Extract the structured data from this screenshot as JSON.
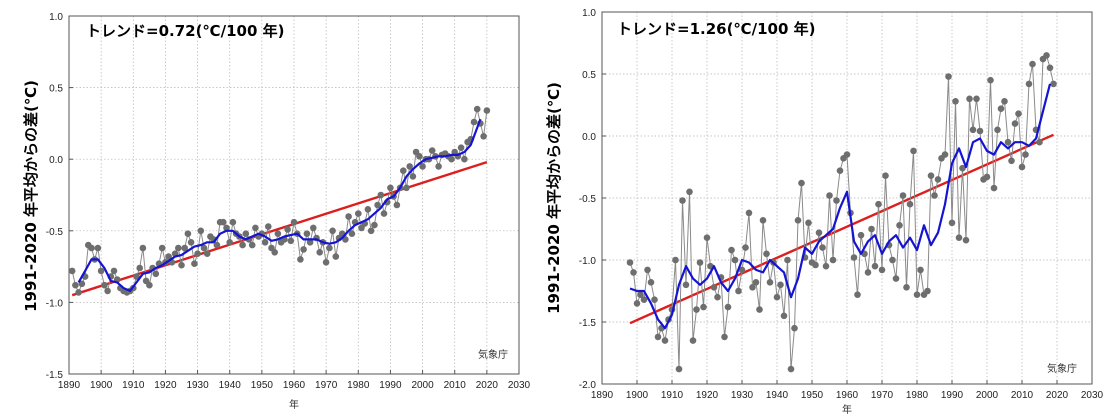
{
  "chart_data": [
    {
      "type": "line",
      "trend_label": "トレンド=0.72(℃/100 年)",
      "ylabel": "1991-2020 年平均からの差(℃)",
      "xlabel": "年",
      "credit": "気象庁",
      "xlim": [
        1890,
        2030
      ],
      "ylim": [
        -1.5,
        1.0
      ],
      "x_ticks": [
        "1890",
        "1900",
        "1910",
        "1920",
        "1930",
        "1940",
        "1950",
        "1960",
        "1970",
        "1980",
        "1990",
        "2000",
        "2010",
        "2020",
        "2030"
      ],
      "y_ticks": [
        "-1.5",
        "-1.0",
        "-0.5",
        "0.0",
        "0.5",
        "1.0"
      ],
      "colors": {
        "annual": "#6e6e6e",
        "smooth": "#1414d2",
        "trend": "#dc1e1e"
      },
      "series": [
        {
          "kind": "annual",
          "x": [
            1891,
            1892,
            1893,
            1894,
            1895,
            1896,
            1897,
            1898,
            1899,
            1900,
            1901,
            1902,
            1903,
            1904,
            1905,
            1906,
            1907,
            1908,
            1909,
            1910,
            1911,
            1912,
            1913,
            1914,
            1915,
            1916,
            1917,
            1918,
            1919,
            1920,
            1921,
            1922,
            1923,
            1924,
            1925,
            1926,
            1927,
            1928,
            1929,
            1930,
            1931,
            1932,
            1933,
            1934,
            1935,
            1936,
            1937,
            1938,
            1939,
            1940,
            1941,
            1942,
            1943,
            1944,
            1945,
            1946,
            1947,
            1948,
            1949,
            1950,
            1951,
            1952,
            1953,
            1954,
            1955,
            1956,
            1957,
            1958,
            1959,
            1960,
            1961,
            1962,
            1963,
            1964,
            1965,
            1966,
            1967,
            1968,
            1969,
            1970,
            1971,
            1972,
            1973,
            1974,
            1975,
            1976,
            1977,
            1978,
            1979,
            1980,
            1981,
            1982,
            1983,
            1984,
            1985,
            1986,
            1987,
            1988,
            1989,
            1990,
            1991,
            1992,
            1993,
            1994,
            1995,
            1996,
            1997,
            1998,
            1999,
            2000,
            2001,
            2002,
            2003,
            2004,
            2005,
            2006,
            2007,
            2008,
            2009,
            2010,
            2011,
            2012,
            2013,
            2014,
            2015,
            2016,
            2017,
            2018,
            2019,
            2020
          ],
          "values": [
            -0.78,
            -0.88,
            -0.93,
            -0.87,
            -0.82,
            -0.6,
            -0.62,
            -0.7,
            -0.62,
            -0.78,
            -0.88,
            -0.92,
            -0.82,
            -0.78,
            -0.84,
            -0.9,
            -0.92,
            -0.93,
            -0.92,
            -0.9,
            -0.82,
            -0.76,
            -0.62,
            -0.85,
            -0.88,
            -0.76,
            -0.8,
            -0.73,
            -0.62,
            -0.72,
            -0.68,
            -0.72,
            -0.66,
            -0.62,
            -0.74,
            -0.62,
            -0.52,
            -0.58,
            -0.73,
            -0.66,
            -0.5,
            -0.62,
            -0.66,
            -0.54,
            -0.56,
            -0.6,
            -0.44,
            -0.44,
            -0.48,
            -0.58,
            -0.44,
            -0.52,
            -0.54,
            -0.6,
            -0.52,
            -0.56,
            -0.6,
            -0.48,
            -0.54,
            -0.52,
            -0.58,
            -0.47,
            -0.62,
            -0.65,
            -0.52,
            -0.58,
            -0.56,
            -0.49,
            -0.57,
            -0.44,
            -0.52,
            -0.7,
            -0.63,
            -0.52,
            -0.58,
            -0.48,
            -0.55,
            -0.65,
            -0.58,
            -0.72,
            -0.62,
            -0.5,
            -0.68,
            -0.55,
            -0.52,
            -0.56,
            -0.4,
            -0.52,
            -0.44,
            -0.38,
            -0.48,
            -0.45,
            -0.35,
            -0.5,
            -0.46,
            -0.32,
            -0.25,
            -0.38,
            -0.3,
            -0.2,
            -0.26,
            -0.32,
            -0.2,
            -0.08,
            -0.2,
            -0.05,
            -0.12,
            0.05,
            0.02,
            -0.05,
            0.0,
            0.0,
            0.06,
            0.02,
            -0.05,
            0.03,
            0.04,
            0.02,
            0.0,
            0.05,
            0.02,
            0.08,
            0.0,
            0.12,
            0.14,
            0.26,
            0.35,
            0.25,
            0.16,
            0.34
          ]
        },
        {
          "kind": "smoothed",
          "x": [
            1893,
            1895,
            1897,
            1899,
            1901,
            1903,
            1905,
            1907,
            1909,
            1911,
            1913,
            1915,
            1917,
            1919,
            1921,
            1923,
            1925,
            1927,
            1929,
            1931,
            1933,
            1935,
            1937,
            1939,
            1941,
            1943,
            1945,
            1947,
            1949,
            1951,
            1953,
            1955,
            1957,
            1959,
            1961,
            1963,
            1965,
            1967,
            1969,
            1971,
            1973,
            1975,
            1977,
            1979,
            1981,
            1983,
            1985,
            1987,
            1989,
            1991,
            1993,
            1995,
            1997,
            1999,
            2001,
            2003,
            2005,
            2007,
            2009,
            2011,
            2013,
            2015,
            2017,
            2018
          ],
          "values": [
            -0.86,
            -0.78,
            -0.7,
            -0.7,
            -0.76,
            -0.85,
            -0.86,
            -0.9,
            -0.92,
            -0.86,
            -0.8,
            -0.79,
            -0.76,
            -0.74,
            -0.71,
            -0.68,
            -0.67,
            -0.64,
            -0.61,
            -0.6,
            -0.58,
            -0.58,
            -0.52,
            -0.5,
            -0.5,
            -0.54,
            -0.56,
            -0.54,
            -0.52,
            -0.54,
            -0.57,
            -0.56,
            -0.54,
            -0.53,
            -0.52,
            -0.56,
            -0.56,
            -0.56,
            -0.58,
            -0.59,
            -0.58,
            -0.55,
            -0.5,
            -0.46,
            -0.44,
            -0.42,
            -0.38,
            -0.34,
            -0.28,
            -0.26,
            -0.2,
            -0.12,
            -0.07,
            -0.03,
            0.0,
            0.01,
            0.02,
            0.02,
            0.03,
            0.03,
            0.05,
            0.1,
            0.22,
            0.28
          ]
        },
        {
          "kind": "trend",
          "x": [
            1891,
            2020
          ],
          "values": [
            -0.95,
            -0.02
          ]
        }
      ]
    },
    {
      "type": "line",
      "trend_label": "トレンド=1.26(℃/100 年)",
      "ylabel": "1991-2020 年平均からの差(℃)",
      "xlabel": "年",
      "credit": "気象庁",
      "xlim": [
        1890,
        2030
      ],
      "ylim": [
        -2.0,
        1.0
      ],
      "x_ticks": [
        "1890",
        "1900",
        "1910",
        "1920",
        "1930",
        "1940",
        "1950",
        "1960",
        "1970",
        "1980",
        "1990",
        "2000",
        "2010",
        "2020",
        "2030"
      ],
      "y_ticks": [
        "-2.0",
        "-1.5",
        "-1.0",
        "-0.5",
        "0.0",
        "0.5",
        "1.0"
      ],
      "colors": {
        "annual": "#6e6e6e",
        "smooth": "#1414d2",
        "trend": "#dc1e1e"
      },
      "series": [
        {
          "kind": "annual",
          "x": [
            1898,
            1899,
            1900,
            1901,
            1902,
            1903,
            1904,
            1905,
            1906,
            1907,
            1908,
            1909,
            1910,
            1911,
            1912,
            1913,
            1914,
            1915,
            1916,
            1917,
            1918,
            1919,
            1920,
            1921,
            1922,
            1923,
            1924,
            1925,
            1926,
            1927,
            1928,
            1929,
            1930,
            1931,
            1932,
            1933,
            1934,
            1935,
            1936,
            1937,
            1938,
            1939,
            1940,
            1941,
            1942,
            1943,
            1944,
            1945,
            1946,
            1947,
            1948,
            1949,
            1950,
            1951,
            1952,
            1953,
            1954,
            1955,
            1956,
            1957,
            1958,
            1959,
            1960,
            1961,
            1962,
            1963,
            1964,
            1965,
            1966,
            1967,
            1968,
            1969,
            1970,
            1971,
            1972,
            1973,
            1974,
            1975,
            1976,
            1977,
            1978,
            1979,
            1980,
            1981,
            1982,
            1983,
            1984,
            1985,
            1986,
            1987,
            1988,
            1989,
            1990,
            1991,
            1992,
            1993,
            1994,
            1995,
            1996,
            1997,
            1998,
            1999,
            2000,
            2001,
            2002,
            2003,
            2004,
            2005,
            2006,
            2007,
            2008,
            2009,
            2010,
            2011,
            2012,
            2013,
            2014,
            2015,
            2016,
            2017,
            2018,
            2019
          ],
          "values": [
            -1.02,
            -1.1,
            -1.35,
            -1.28,
            -1.32,
            -1.08,
            -1.18,
            -1.32,
            -1.62,
            -1.55,
            -1.65,
            -1.48,
            -1.4,
            -1.0,
            -1.88,
            -0.52,
            -1.2,
            -0.45,
            -1.65,
            -1.4,
            -1.02,
            -1.38,
            -0.82,
            -1.05,
            -1.22,
            -1.3,
            -1.14,
            -1.62,
            -1.38,
            -0.92,
            -1.0,
            -1.25,
            -1.08,
            -0.9,
            -0.62,
            -1.22,
            -1.18,
            -1.4,
            -0.68,
            -0.95,
            -1.18,
            -1.02,
            -1.3,
            -1.2,
            -1.45,
            -1.0,
            -1.88,
            -1.55,
            -0.68,
            -0.38,
            -0.98,
            -0.7,
            -1.02,
            -1.04,
            -0.78,
            -0.9,
            -1.05,
            -0.48,
            -1.0,
            -0.52,
            -0.28,
            -0.18,
            -0.15,
            -0.62,
            -0.98,
            -1.28,
            -0.8,
            -0.95,
            -1.1,
            -0.75,
            -1.05,
            -0.55,
            -1.08,
            -0.32,
            -0.88,
            -1.0,
            -1.15,
            -0.72,
            -0.48,
            -1.22,
            -0.55,
            -0.12,
            -1.28,
            -1.08,
            -1.28,
            -1.25,
            -0.32,
            -0.48,
            -0.35,
            -0.18,
            -0.15,
            0.48,
            -0.7,
            0.28,
            -0.82,
            -0.26,
            -0.84,
            0.3,
            0.05,
            0.3,
            0.04,
            -0.35,
            -0.33,
            0.45,
            -0.42,
            0.05,
            0.22,
            0.28,
            -0.05,
            -0.2,
            0.1,
            0.18,
            -0.25,
            -0.15,
            0.42,
            0.58,
            0.05,
            -0.05,
            0.62,
            0.65,
            0.55,
            0.42
          ]
        },
        {
          "kind": "smoothed",
          "x": [
            1898,
            1900,
            1902,
            1904,
            1906,
            1908,
            1910,
            1912,
            1914,
            1916,
            1918,
            1920,
            1922,
            1924,
            1926,
            1928,
            1930,
            1932,
            1934,
            1936,
            1938,
            1940,
            1942,
            1944,
            1946,
            1948,
            1950,
            1952,
            1954,
            1956,
            1958,
            1960,
            1962,
            1964,
            1966,
            1968,
            1970,
            1972,
            1974,
            1976,
            1978,
            1980,
            1982,
            1984,
            1986,
            1988,
            1990,
            1992,
            1994,
            1996,
            1998,
            2000,
            2002,
            2004,
            2006,
            2008,
            2010,
            2012,
            2014,
            2016,
            2018
          ],
          "values": [
            -1.23,
            -1.25,
            -1.25,
            -1.35,
            -1.48,
            -1.55,
            -1.44,
            -1.2,
            -1.05,
            -1.15,
            -1.2,
            -1.15,
            -1.05,
            -1.18,
            -1.25,
            -1.15,
            -1.0,
            -1.02,
            -1.08,
            -1.1,
            -1.0,
            -1.05,
            -1.1,
            -1.3,
            -1.15,
            -0.9,
            -0.95,
            -0.85,
            -0.8,
            -0.75,
            -0.58,
            -0.45,
            -0.85,
            -0.95,
            -0.85,
            -0.8,
            -0.95,
            -0.85,
            -0.8,
            -0.9,
            -0.82,
            -0.92,
            -0.72,
            -0.88,
            -0.78,
            -0.55,
            -0.22,
            -0.1,
            -0.25,
            -0.05,
            -0.02,
            -0.12,
            -0.15,
            -0.05,
            -0.1,
            -0.05,
            -0.05,
            -0.08,
            -0.02,
            0.2,
            0.42
          ]
        },
        {
          "kind": "trend",
          "x": [
            1898,
            2019
          ],
          "values": [
            -1.51,
            0.01
          ]
        }
      ]
    }
  ]
}
